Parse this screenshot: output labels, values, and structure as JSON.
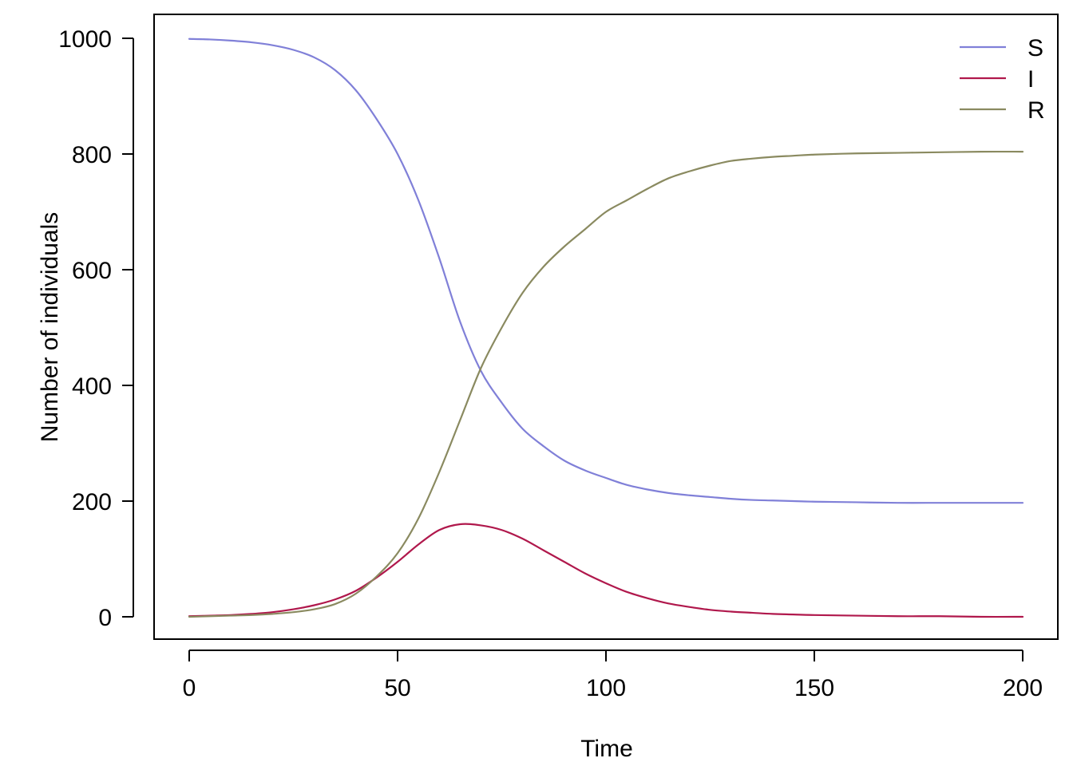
{
  "chart_data": {
    "type": "line",
    "title": "",
    "xlabel": "Time",
    "ylabel": "Number of individuals",
    "xlim": [
      0,
      200
    ],
    "ylim": [
      0,
      1000
    ],
    "x_ticks": [
      0,
      50,
      100,
      150,
      200
    ],
    "y_ticks": [
      0,
      200,
      400,
      600,
      800,
      1000
    ],
    "x_tick_labels": [
      "0",
      "50",
      "100",
      "150",
      "200"
    ],
    "y_tick_labels": [
      "0",
      "200",
      "400",
      "600",
      "800",
      "1000"
    ],
    "grid": false,
    "legend": {
      "position": "top-right",
      "frame": false
    },
    "x": [
      0,
      5,
      10,
      15,
      20,
      25,
      30,
      35,
      40,
      45,
      50,
      55,
      60,
      65,
      70,
      75,
      80,
      85,
      90,
      95,
      100,
      105,
      110,
      115,
      120,
      125,
      130,
      135,
      140,
      145,
      150,
      160,
      170,
      180,
      190,
      200
    ],
    "series": [
      {
        "name": "S",
        "color": "#8080d8",
        "values": [
          999,
          998,
          996,
          993,
          988,
          980,
          967,
          945,
          910,
          860,
          800,
          720,
          620,
          510,
          425,
          370,
          325,
          295,
          270,
          253,
          240,
          228,
          220,
          214,
          210,
          207,
          204,
          202,
          201,
          200,
          199,
          198,
          197,
          197,
          197,
          197
        ]
      },
      {
        "name": "I",
        "color": "#b0184c",
        "values": [
          1,
          2,
          3,
          5,
          8,
          13,
          20,
          30,
          45,
          68,
          95,
          125,
          150,
          160,
          158,
          150,
          135,
          115,
          95,
          75,
          58,
          43,
          32,
          23,
          17,
          12,
          9,
          7,
          5,
          4,
          3,
          2,
          1,
          1,
          0,
          0
        ]
      },
      {
        "name": "R",
        "color": "#8a8a60",
        "values": [
          0,
          1,
          2,
          3,
          5,
          8,
          13,
          22,
          40,
          70,
          110,
          170,
          250,
          340,
          430,
          500,
          560,
          605,
          640,
          670,
          700,
          720,
          740,
          758,
          770,
          780,
          788,
          792,
          795,
          797,
          799,
          801,
          802,
          803,
          804,
          804
        ]
      }
    ]
  }
}
